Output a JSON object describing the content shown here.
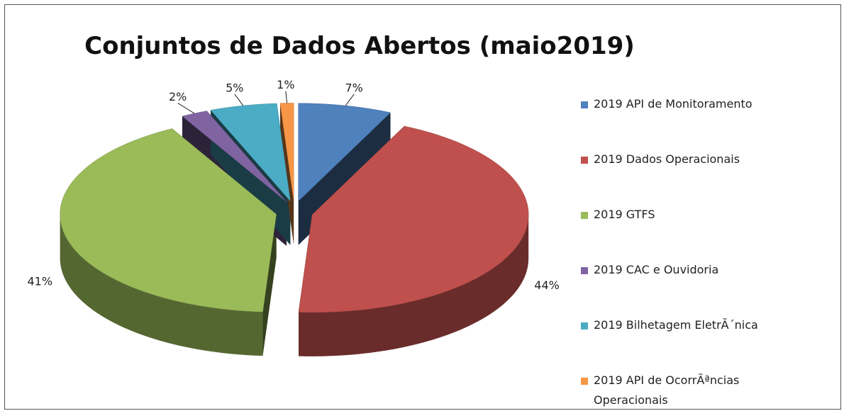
{
  "chart_data": {
    "type": "pie3d",
    "title": "Conjuntos de Dados Abertos (maio2019)",
    "categories": [
      "2019 API de Monitoramento",
      "2019 Dados Operacionais",
      "2019 GTFS",
      "2019 CAC e Ouvidoria",
      "2019 Bilhetagem EletrÃ´nica",
      "2019 API de OcorrÃªncias Operacionais"
    ],
    "values": [
      7,
      44,
      41,
      2,
      5,
      1
    ],
    "value_labels": [
      "7%",
      "44%",
      "41%",
      "2%",
      "5%",
      "1%"
    ],
    "colors": [
      "#4f81bd",
      "#c0504d",
      "#9bbb59",
      "#8064a2",
      "#4bacc6",
      "#f79646"
    ],
    "legend": "right"
  }
}
